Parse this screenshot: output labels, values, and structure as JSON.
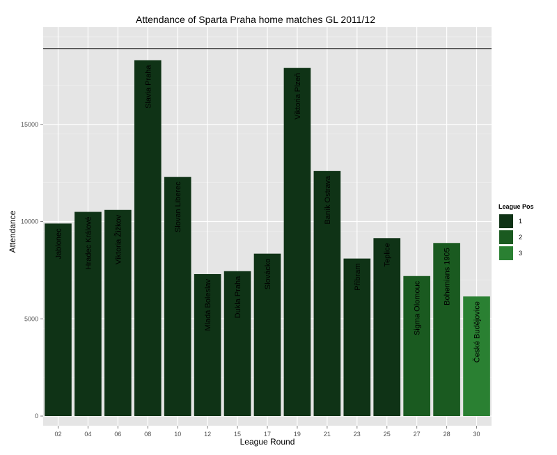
{
  "chart_data": {
    "type": "bar",
    "title": "Attendance of Sparta Praha home matches GL 2011/12",
    "xlabel": "League Round",
    "ylabel": "Attendance",
    "ylim": [
      -500,
      20000
    ],
    "yticks": [
      0,
      5000,
      10000,
      15000
    ],
    "grid": true,
    "reference_line": 18900,
    "categories": [
      "02",
      "04",
      "06",
      "08",
      "10",
      "12",
      "15",
      "17",
      "19",
      "21",
      "23",
      "25",
      "27",
      "28",
      "30"
    ],
    "opponents": [
      "Jablonec",
      "Hradec Králové",
      "Viktoria Žižkov",
      "Slavia Praha",
      "Slovan Liberec",
      "Mladá Boleslav",
      "Dukla Praha",
      "Slovácko",
      "Viktoria Plzeň",
      "Baník Ostrava",
      "Příbram",
      "Teplice",
      "Sigma Olomouc",
      "Bohemians 1905",
      "České Budějovice"
    ],
    "values": [
      9900,
      10500,
      10600,
      18300,
      12300,
      7300,
      7450,
      8350,
      17900,
      12600,
      8100,
      9150,
      7200,
      8900,
      6150
    ],
    "league_pos": [
      1,
      1,
      1,
      1,
      1,
      1,
      1,
      1,
      1,
      1,
      1,
      1,
      2,
      2,
      3
    ],
    "legend": {
      "title": "League Pos",
      "placement": "right",
      "entries": [
        {
          "label": "1",
          "color": "#0f3316"
        },
        {
          "label": "2",
          "color": "#1a5a20"
        },
        {
          "label": "3",
          "color": "#2a8032"
        }
      ]
    },
    "colors": {
      "panel": "#e5e5e5",
      "grid": "#ffffff",
      "reference_line": "#333333",
      "tick_text": "#4d4d4d"
    }
  }
}
